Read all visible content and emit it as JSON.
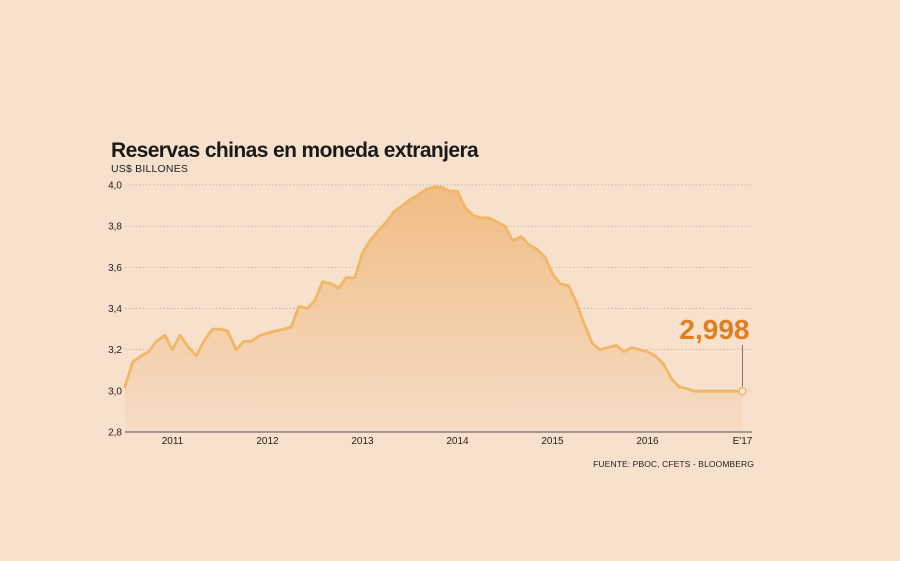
{
  "title": "Reservas chinas en moneda extranjera",
  "subtitle": "US$ BILLONES",
  "source": "FUENTE: PBOC, CFETS - BLOOMBERG",
  "colors": {
    "line": "#f2b765",
    "area_top": "#f0bd85",
    "area_bottom": "#f6dcc5",
    "callout": "#e07f1f",
    "grid": "#b9a99b",
    "axis": "#555555"
  },
  "chart_data": {
    "type": "area",
    "title": "Reservas chinas en moneda extranjera",
    "ylabel": "US$ BILLONES",
    "xlabel": "",
    "ylim": [
      2.8,
      4.0
    ],
    "yticks": [
      "2,8",
      "3,0",
      "3,2",
      "3,4",
      "3,6",
      "3,8",
      "4,0"
    ],
    "ytick_values": [
      2.8,
      3.0,
      3.2,
      3.4,
      3.6,
      3.8,
      4.0
    ],
    "xtick_labels": [
      "2011",
      "2012",
      "2013",
      "2014",
      "2015",
      "2016",
      "E'17"
    ],
    "xtick_values": [
      2011.0,
      2012.0,
      2013.0,
      2014.0,
      2015.0,
      2016.0,
      2017.0
    ],
    "xlim": [
      2010.5,
      2017.1
    ],
    "grid": true,
    "series": [
      {
        "x": [
          2010.5,
          2010.58,
          2010.67,
          2010.75,
          2010.83,
          2010.92,
          2011.0,
          2011.08,
          2011.17,
          2011.25,
          2011.33,
          2011.42,
          2011.5,
          2011.58,
          2011.67,
          2011.75,
          2011.83,
          2011.92,
          2012.0,
          2012.08,
          2012.17,
          2012.25,
          2012.33,
          2012.42,
          2012.5,
          2012.58,
          2012.67,
          2012.75,
          2012.83,
          2012.92,
          2013.0,
          2013.08,
          2013.17,
          2013.25,
          2013.33,
          2013.42,
          2013.5,
          2013.58,
          2013.67,
          2013.75,
          2013.83,
          2013.92,
          2014.0,
          2014.08,
          2014.17,
          2014.25,
          2014.33,
          2014.42,
          2014.5,
          2014.58,
          2014.67,
          2014.75,
          2014.83,
          2014.92,
          2015.0,
          2015.08,
          2015.17,
          2015.25,
          2015.33,
          2015.42,
          2015.5,
          2015.58,
          2015.67,
          2015.75,
          2015.83,
          2015.92,
          2016.0,
          2016.08,
          2016.17,
          2016.25,
          2016.33,
          2016.42,
          2016.5,
          2016.58,
          2016.67,
          2016.75,
          2016.83,
          2016.92,
          2017.0
        ],
        "values": [
          3.02,
          3.14,
          3.17,
          3.19,
          3.24,
          3.27,
          3.2,
          3.27,
          3.21,
          3.17,
          3.24,
          3.3,
          3.3,
          3.29,
          3.2,
          3.24,
          3.24,
          3.27,
          3.28,
          3.29,
          3.3,
          3.31,
          3.41,
          3.4,
          3.44,
          3.53,
          3.52,
          3.5,
          3.55,
          3.55,
          3.67,
          3.73,
          3.78,
          3.82,
          3.87,
          3.9,
          3.93,
          3.95,
          3.98,
          3.99,
          3.99,
          3.97,
          3.97,
          3.89,
          3.85,
          3.84,
          3.84,
          3.82,
          3.8,
          3.73,
          3.75,
          3.71,
          3.69,
          3.65,
          3.57,
          3.52,
          3.51,
          3.43,
          3.33,
          3.23,
          3.2,
          3.21,
          3.22,
          3.19,
          3.21,
          3.2,
          3.19,
          3.17,
          3.13,
          3.06,
          3.02,
          3.01,
          2.998,
          2.998,
          2.998,
          2.998,
          2.998,
          2.998,
          2.998
        ]
      }
    ],
    "callout": {
      "label": "2,998",
      "x": 2017.0,
      "value": 2.998
    }
  }
}
